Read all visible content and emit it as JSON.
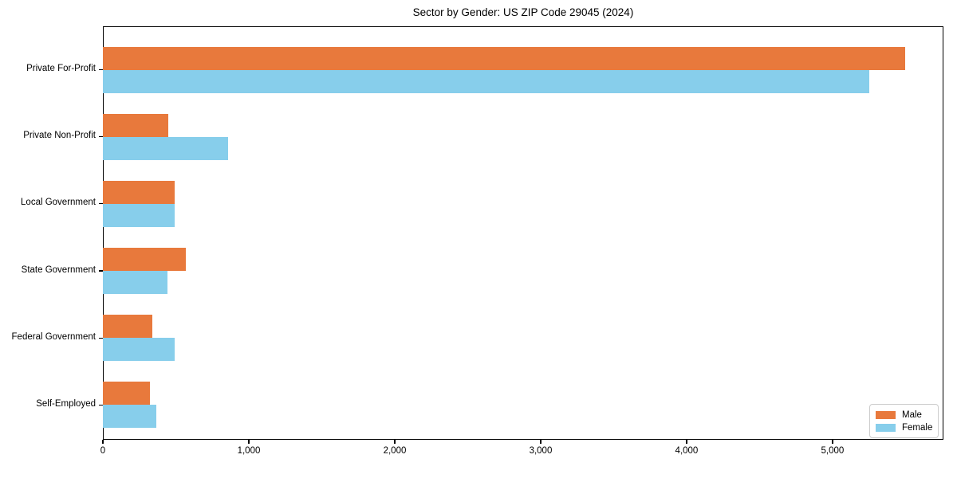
{
  "chart_data": {
    "type": "bar",
    "orientation": "horizontal",
    "title": "Sector by Gender: US ZIP Code 29045 (2024)",
    "categories": [
      "Private For-Profit",
      "Private Non-Profit",
      "Local Government",
      "State Government",
      "Federal Government",
      "Self-Employed"
    ],
    "series": [
      {
        "name": "Male",
        "color": "#e8793c",
        "values": [
          5500,
          450,
          490,
          570,
          340,
          320
        ]
      },
      {
        "name": "Female",
        "color": "#87ceeb",
        "values": [
          5250,
          860,
          490,
          440,
          490,
          365
        ]
      }
    ],
    "xlabel": "",
    "ylabel": "",
    "xlim": [
      0,
      5760
    ],
    "xticks": [
      0,
      1000,
      2000,
      3000,
      4000,
      5000
    ],
    "xtick_labels": [
      "0",
      "1,000",
      "2,000",
      "3,000",
      "4,000",
      "5,000"
    ],
    "legend": {
      "position": "lower right"
    },
    "grid": false,
    "background_color": "#ffffff",
    "spine_color": "#000000"
  }
}
